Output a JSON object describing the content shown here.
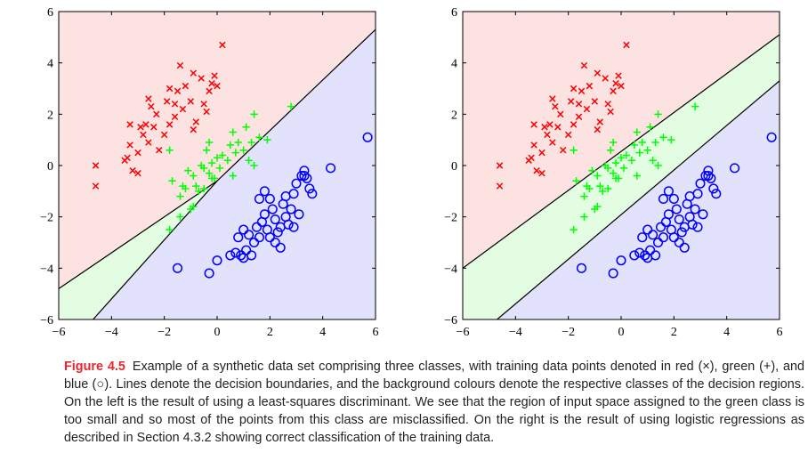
{
  "caption": {
    "label": "Figure 4.5",
    "text": "Example of a synthetic data set comprising three classes, with training data points denoted in red (×), green (+), and blue (○). Lines denote the decision boundaries, and the background colours denote the respective classes of the decision regions. On the left is the result of using a least-squares discriminant. We see that the region of input space assigned to the green class is too small and so most of the points from this class are misclassified. On the right is the result of using logistic regressions as described in Section 4.3.2 showing correct classification of the training data."
  },
  "colors": {
    "red_region": "#fde2e2",
    "green_region": "#e2fde2",
    "blue_region": "#e2e2fd",
    "red_points": "#ff0000",
    "green_points": "#00ff00",
    "blue_points": "#0000ff",
    "fig_label": "#e8262e"
  },
  "chart_data": [
    {
      "type": "scatter",
      "panel": "left",
      "xlim": [
        -6,
        6
      ],
      "ylim": [
        -6,
        6
      ],
      "xticks": [
        "−6",
        "−4",
        "−2",
        "0",
        "2",
        "4",
        "6"
      ],
      "yticks": [
        "−6",
        "−4",
        "−2",
        "0",
        "2",
        "4",
        "6"
      ],
      "boundaries": [
        {
          "between": "red-green",
          "points": [
            [
              -6,
              -4.8
            ],
            [
              0,
              -0.6
            ]
          ]
        },
        {
          "between": "green-blue",
          "points": [
            [
              -4.7,
              -6
            ],
            [
              0,
              -0.6
            ]
          ]
        },
        {
          "between": "red-blue",
          "points": [
            [
              0,
              -0.6
            ],
            [
              6,
              5.3
            ]
          ]
        }
      ],
      "series": [
        {
          "class": "red",
          "marker": "x",
          "points": [
            [
              -4.6,
              -0.8
            ],
            [
              -4.6,
              0
            ],
            [
              -3.5,
              0.2
            ],
            [
              -3.4,
              0.3
            ],
            [
              -3.3,
              0.8
            ],
            [
              -3.2,
              -0.2
            ],
            [
              -3.0,
              0.5
            ],
            [
              -2.8,
              1.2
            ],
            [
              -2.7,
              1.6
            ],
            [
              -2.6,
              0.9
            ],
            [
              -2.4,
              1.5
            ],
            [
              -2.3,
              2.0
            ],
            [
              -2.2,
              0.6
            ],
            [
              -2.0,
              1.2
            ],
            [
              -1.9,
              2.5
            ],
            [
              -1.8,
              1.6
            ],
            [
              -1.6,
              1.9
            ],
            [
              -1.5,
              2.9
            ],
            [
              -1.3,
              2.2
            ],
            [
              -1.2,
              3.1
            ],
            [
              -1.0,
              2.5
            ],
            [
              -0.9,
              1.4
            ],
            [
              -0.8,
              1.7
            ],
            [
              -0.6,
              3.4
            ],
            [
              -0.5,
              2.4
            ],
            [
              -0.3,
              2.9
            ],
            [
              -0.1,
              3.5
            ],
            [
              0.0,
              3.1
            ],
            [
              0.2,
              4.7
            ],
            [
              -0.9,
              3.6
            ],
            [
              -1.4,
              3.9
            ],
            [
              -1.8,
              3.0
            ],
            [
              -3.3,
              1.6
            ],
            [
              -2.9,
              1.5
            ],
            [
              -2.5,
              2.3
            ],
            [
              -1.6,
              2.4
            ],
            [
              -0.4,
              2.1
            ],
            [
              -0.2,
              3.2
            ],
            [
              -2.6,
              2.6
            ],
            [
              -3.0,
              -0.3
            ]
          ]
        },
        {
          "class": "green",
          "marker": "+",
          "points": [
            [
              -1.8,
              -2.5
            ],
            [
              -1.7,
              -0.6
            ],
            [
              -1.4,
              -1.2
            ],
            [
              -1.2,
              -0.9
            ],
            [
              -1.1,
              -0.2
            ],
            [
              -1.0,
              -1.7
            ],
            [
              -0.9,
              -0.4
            ],
            [
              -0.8,
              -0.8
            ],
            [
              -0.7,
              -1.0
            ],
            [
              -0.6,
              0.0
            ],
            [
              -0.5,
              -0.1
            ],
            [
              -0.4,
              0.6
            ],
            [
              -0.3,
              -0.3
            ],
            [
              -0.2,
              0.1
            ],
            [
              -0.1,
              -0.5
            ],
            [
              0.0,
              0.3
            ],
            [
              0.1,
              -0.1
            ],
            [
              0.2,
              0.4
            ],
            [
              0.4,
              0.2
            ],
            [
              0.5,
              0.8
            ],
            [
              0.6,
              1.3
            ],
            [
              0.8,
              0.9
            ],
            [
              1.0,
              0.6
            ],
            [
              1.1,
              1.5
            ],
            [
              1.3,
              0.9
            ],
            [
              1.4,
              2.0
            ],
            [
              1.6,
              1.1
            ],
            [
              1.9,
              1.0
            ],
            [
              2.8,
              2.3
            ],
            [
              1.4,
              0.0
            ],
            [
              0.6,
              -0.4
            ],
            [
              -0.2,
              -0.5
            ],
            [
              -0.5,
              -0.9
            ],
            [
              -1.3,
              -0.8
            ],
            [
              -1.8,
              0.6
            ],
            [
              -0.3,
              0.9
            ],
            [
              1.2,
              0.2
            ],
            [
              0.7,
              0.5
            ],
            [
              -0.9,
              -1.6
            ],
            [
              -1.4,
              -2.0
            ]
          ]
        },
        {
          "class": "blue",
          "marker": "o",
          "points": [
            [
              -1.5,
              -4.0
            ],
            [
              -0.3,
              -4.2
            ],
            [
              0.0,
              -3.7
            ],
            [
              0.5,
              -3.5
            ],
            [
              0.7,
              -3.4
            ],
            [
              0.9,
              -3.5
            ],
            [
              1.0,
              -3.6
            ],
            [
              1.1,
              -3.3
            ],
            [
              1.2,
              -2.7
            ],
            [
              1.3,
              -3.5
            ],
            [
              1.4,
              -3.0
            ],
            [
              1.5,
              -2.4
            ],
            [
              1.6,
              -2.8
            ],
            [
              1.7,
              -2.2
            ],
            [
              1.8,
              -1.9
            ],
            [
              1.9,
              -2.5
            ],
            [
              2.0,
              -1.3
            ],
            [
              2.1,
              -1.7
            ],
            [
              2.2,
              -2.1
            ],
            [
              2.3,
              -2.6
            ],
            [
              2.4,
              -3.2
            ],
            [
              2.5,
              -1.5
            ],
            [
              2.6,
              -2.0
            ],
            [
              2.7,
              -2.3
            ],
            [
              2.8,
              -1.7
            ],
            [
              2.9,
              -1.1
            ],
            [
              3.0,
              -0.7
            ],
            [
              3.1,
              -1.9
            ],
            [
              3.2,
              -0.4
            ],
            [
              3.3,
              -0.2
            ],
            [
              3.4,
              -0.5
            ],
            [
              3.5,
              -0.9
            ],
            [
              3.6,
              -1.1
            ],
            [
              4.3,
              -0.1
            ],
            [
              5.7,
              1.1
            ],
            [
              1.8,
              -1.0
            ],
            [
              2.0,
              -2.8
            ],
            [
              2.6,
              -1.2
            ],
            [
              2.2,
              -3.0
            ],
            [
              1.6,
              -1.3
            ],
            [
              2.9,
              -2.4
            ],
            [
              3.3,
              -0.4
            ],
            [
              1.0,
              -2.5
            ],
            [
              2.4,
              -2.4
            ],
            [
              0.8,
              -2.8
            ]
          ]
        }
      ]
    },
    {
      "type": "scatter",
      "panel": "right",
      "xlim": [
        -6,
        6
      ],
      "ylim": [
        -6,
        6
      ],
      "xticks": [
        "−6",
        "−4",
        "−2",
        "0",
        "2",
        "4",
        "6"
      ],
      "yticks": [
        "−6",
        "−4",
        "−2",
        "0",
        "2",
        "4",
        "6"
      ],
      "boundaries": [
        {
          "between": "red-green",
          "points": [
            [
              -6,
              -4.0
            ],
            [
              6,
              5.1
            ]
          ]
        },
        {
          "between": "green-blue",
          "points": [
            [
              -4.7,
              -6
            ],
            [
              6,
              3.3
            ]
          ]
        }
      ],
      "series": [
        {
          "class": "red",
          "marker": "x",
          "points": "same as left panel"
        },
        {
          "class": "green",
          "marker": "+",
          "points": "same as left panel"
        },
        {
          "class": "blue",
          "marker": "o",
          "points": "same as left panel"
        }
      ]
    }
  ]
}
